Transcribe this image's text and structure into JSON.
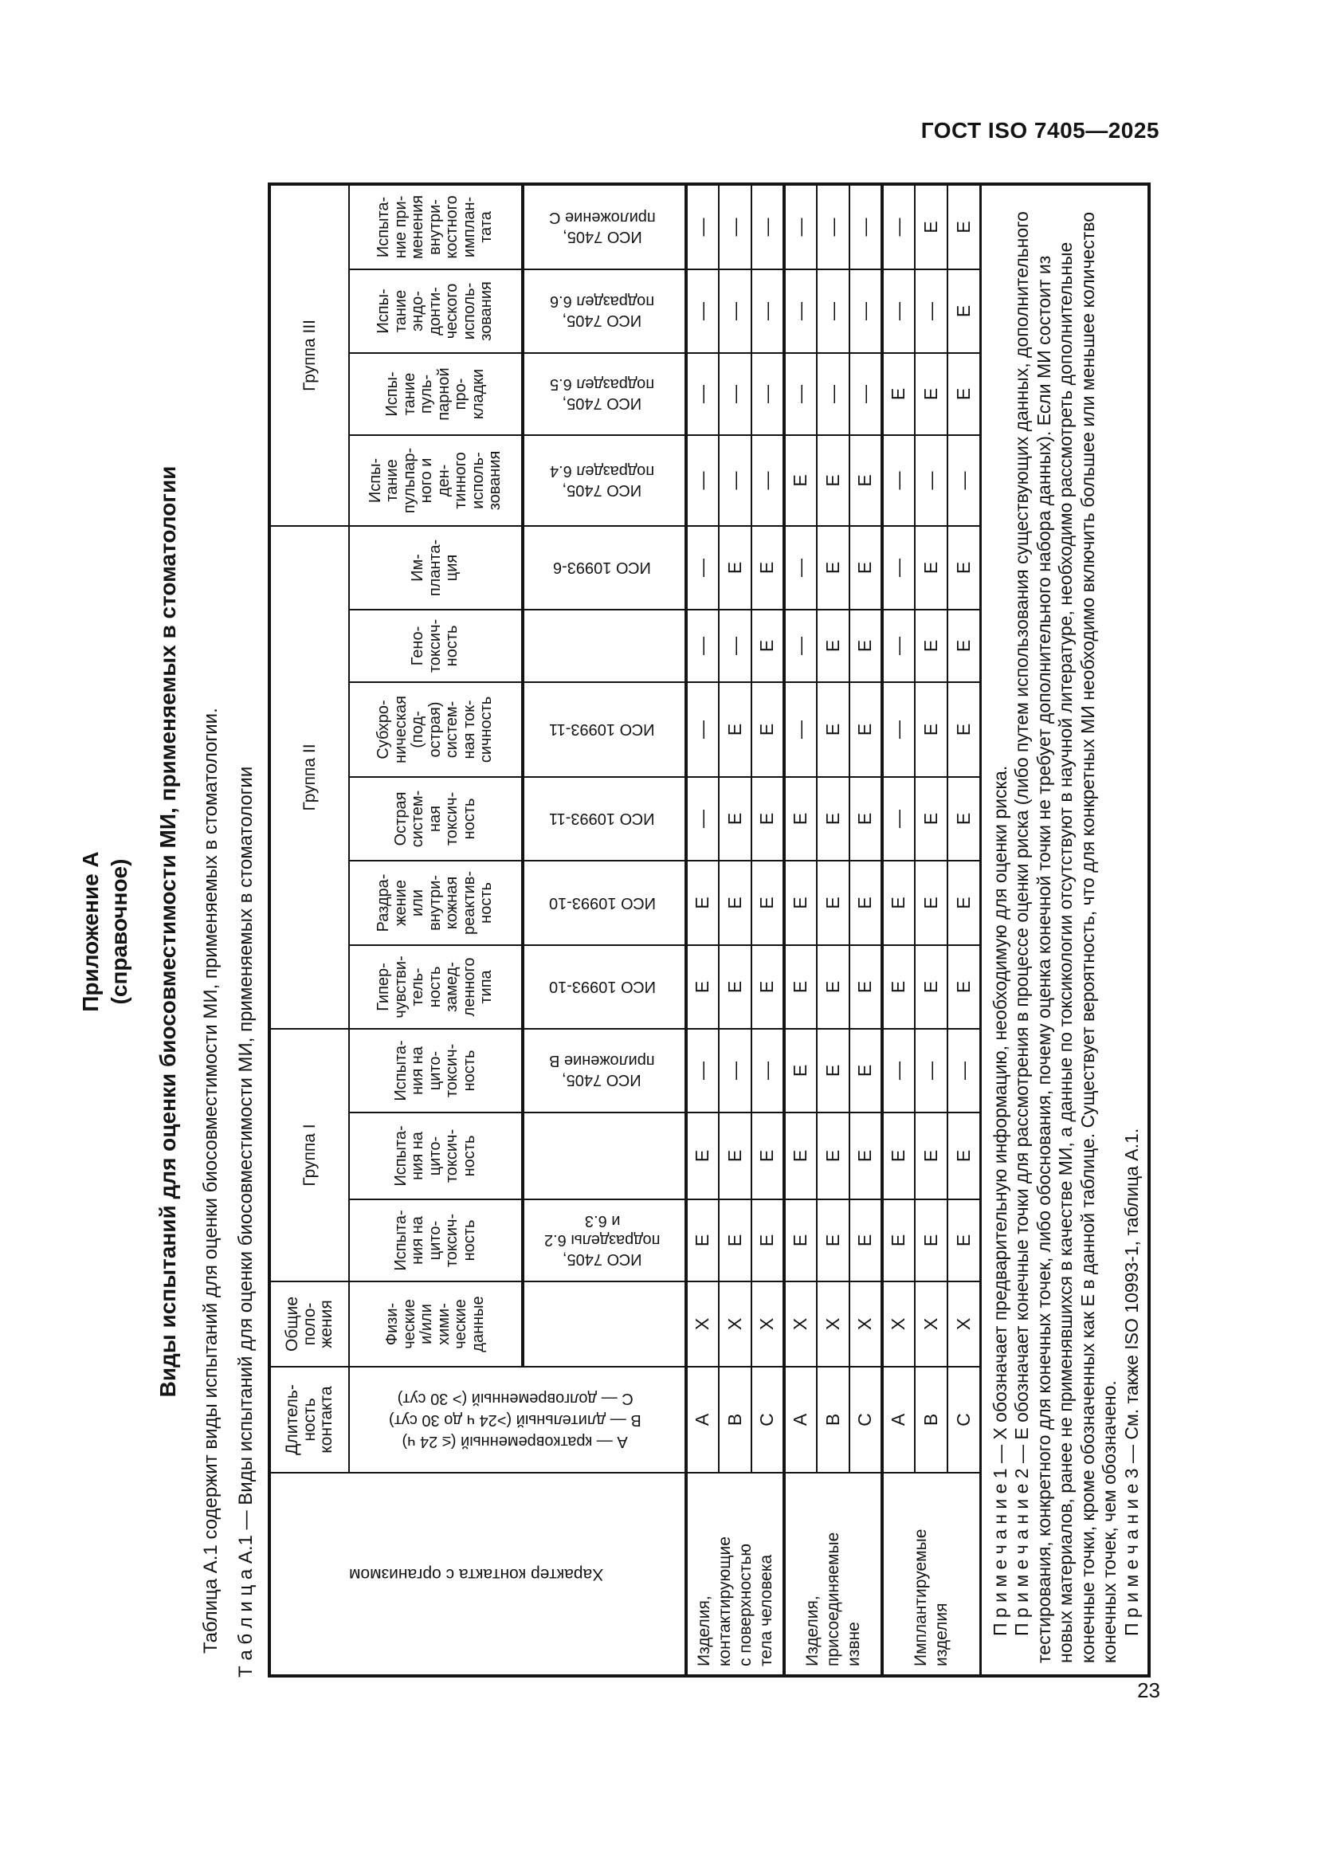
{
  "page": {
    "header": "ГОСТ ISO 7405—2025",
    "number": "23"
  },
  "appendix": {
    "label": "Приложение А",
    "sub": "(справочное)",
    "title": "Виды испытаний для оценки биосовместимости МИ, применяемых в стоматологии",
    "intro": "Таблица А.1 содержит виды испытаний для оценки биосовместимости МИ, применяемых в стоматологии.",
    "table_caption": "Т а б л и ц а  А.1 — Виды испытаний для оценки биосовместимости МИ, применяемых в стоматологии"
  },
  "table": {
    "corner_header": "Характер контакта с организмом",
    "duration_header": "Длитель-\nность\nконтакта",
    "general_header": "Общие\nполо-\nжения",
    "duration_legend": [
      "А — кратковременный (≤ 24 ч)",
      "В — длительный (>24 ч до 30 сут)",
      "С — долговременный (> 30 сут)"
    ],
    "groups": [
      {
        "label": "Группа I",
        "span": 3
      },
      {
        "label": "Группа II",
        "span": 6
      },
      {
        "label": "Группа III",
        "span": 4
      }
    ],
    "columns": [
      {
        "name": "Физи-\nческие\nи/или\nхими-\nческие\nданные",
        "iso": ""
      },
      {
        "name": "Испыта-\nния на\nцито-\nтоксич-\nность",
        "iso": "ИСО 7405,\nподразделы 6.2\nи 6.3"
      },
      {
        "name": "Испыта-\nния на\nцито-\nтоксич-\nность",
        "iso": ""
      },
      {
        "name": "Испыта-\nния на\nцито-\nтоксич-\nность",
        "iso": "ИСО 7405,\nприложение В"
      },
      {
        "name": "Гипер-\nчувстви-\nтель-\nность\nзамед-\nленного\nтипа",
        "iso": "ИСО 10993-10"
      },
      {
        "name": "Раздра-\nжение\nили\nвнутри-\nкожная\nреактив-\nность",
        "iso": "ИСО 10993-10"
      },
      {
        "name": "Острая\nсистем-\nная\nтоксич-\nность",
        "iso": "ИСО 10993-11"
      },
      {
        "name": "Субхро-\nническая\n(под-\nострая)\nсистем-\nная ток-\nсичность",
        "iso": "ИСО 10993-11"
      },
      {
        "name": "Гено-\nтоксич-\nность",
        "iso": ""
      },
      {
        "name": "Им-\nпланта-\nция",
        "iso": "ИСО 10993-6"
      },
      {
        "name": "Испы-\nтание\nпульпар-\nного и\nден-\nтинного\nисполь-\nзования",
        "iso": "ИСО 7405,\nподраздел 6.4"
      },
      {
        "name": "Испы-\nтание\nпуль-\nпарной\nпро-\nкладки",
        "iso": "ИСО 7405,\nподраздел 6.5"
      },
      {
        "name": "Испы-\nтание\nэндо-\nдонти-\nческого\nисполь-\nзования",
        "iso": "ИСО 7405,\nподраздел 6.6"
      },
      {
        "name": "Испыта-\nние при-\nменения\nвнутри-\nкостного\nимплан-\nтата",
        "iso": "ИСО 7405,\nприложение С"
      }
    ],
    "row_groups": [
      {
        "label": "Изделия,\nконтактирующие\nс поверхностью\nтела человека",
        "rows": [
          {
            "duration": "А",
            "values": [
              "Х",
              "Е",
              "Е",
              "—",
              "Е",
              "Е",
              "—",
              "—",
              "—",
              "—",
              "—",
              "—",
              "—",
              "—"
            ]
          },
          {
            "duration": "В",
            "values": [
              "Х",
              "Е",
              "Е",
              "—",
              "Е",
              "Е",
              "Е",
              "Е",
              "—",
              "Е",
              "—",
              "—",
              "—",
              "—"
            ]
          },
          {
            "duration": "С",
            "values": [
              "Х",
              "Е",
              "Е",
              "—",
              "Е",
              "Е",
              "Е",
              "Е",
              "Е",
              "Е",
              "—",
              "—",
              "—",
              "—"
            ]
          }
        ]
      },
      {
        "label": "Изделия,\nприсоединяемые\nизвне",
        "rows": [
          {
            "duration": "А",
            "values": [
              "Х",
              "Е",
              "Е",
              "Е",
              "Е",
              "Е",
              "Е",
              "—",
              "—",
              "—",
              "Е",
              "—",
              "—",
              "—"
            ]
          },
          {
            "duration": "В",
            "values": [
              "Х",
              "Е",
              "Е",
              "Е",
              "Е",
              "Е",
              "Е",
              "Е",
              "Е",
              "Е",
              "Е",
              "—",
              "—",
              "—"
            ]
          },
          {
            "duration": "С",
            "values": [
              "Х",
              "Е",
              "Е",
              "Е",
              "Е",
              "Е",
              "Е",
              "Е",
              "Е",
              "Е",
              "Е",
              "—",
              "—",
              "—"
            ]
          }
        ]
      },
      {
        "label": "Имплантируемые\nизделия",
        "rows": [
          {
            "duration": "А",
            "values": [
              "Х",
              "Е",
              "Е",
              "—",
              "Е",
              "Е",
              "—",
              "—",
              "—",
              "—",
              "—",
              "Е",
              "—",
              "—"
            ]
          },
          {
            "duration": "В",
            "values": [
              "Х",
              "Е",
              "Е",
              "—",
              "Е",
              "Е",
              "Е",
              "Е",
              "Е",
              "Е",
              "—",
              "Е",
              "—",
              "Е"
            ]
          },
          {
            "duration": "С",
            "values": [
              "Х",
              "Е",
              "Е",
              "—",
              "Е",
              "Е",
              "Е",
              "Е",
              "Е",
              "Е",
              "—",
              "Е",
              "Е",
              "Е"
            ]
          }
        ]
      }
    ],
    "notes": [
      "П р и м е ч а н и е  1 — Х обозначает предварительную информацию, необходимую для оценки риска.",
      "П р и м е ч а н и е  2 — Е обозначает конечные точки для рассмотрения в процессе оценки риска (либо путем использования существующих данных, дополнительного тестирования, конкретного для конечных точек, либо обоснования, почему оценка конечной точки не требует дополнительного набора данных). Если МИ состоит из новых материалов, ранее не применявшихся в качестве МИ, а данные по токсикологии отсутствуют в научной литературе, необходимо рассмотреть дополнительные конечные точки, кроме обозначенных как Е в данной таблице. Существует вероятность, что для конкретных МИ необходимо включить большее или меньшее количество конечных точек, чем обозначено.",
      "П р и м е ч а н и е  3 — См. также ISO 10993-1, таблица А.1."
    ]
  }
}
